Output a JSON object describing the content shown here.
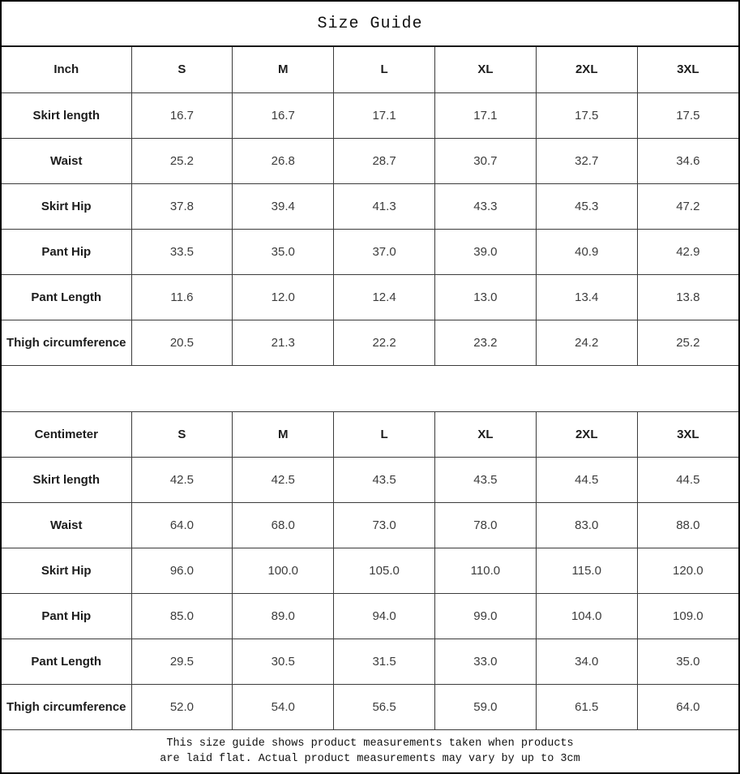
{
  "title": "Size Guide",
  "tables": [
    {
      "unit_header": "Inch",
      "sizes": [
        "S",
        "M",
        "L",
        "XL",
        "2XL",
        "3XL"
      ],
      "rows": [
        {
          "label": "Skirt length",
          "values": [
            "16.7",
            "16.7",
            "17.1",
            "17.1",
            "17.5",
            "17.5"
          ]
        },
        {
          "label": "Waist",
          "values": [
            "25.2",
            "26.8",
            "28.7",
            "30.7",
            "32.7",
            "34.6"
          ]
        },
        {
          "label": "Skirt Hip",
          "values": [
            "37.8",
            "39.4",
            "41.3",
            "43.3",
            "45.3",
            "47.2"
          ]
        },
        {
          "label": "Pant Hip",
          "values": [
            "33.5",
            "35.0",
            "37.0",
            "39.0",
            "40.9",
            "42.9"
          ]
        },
        {
          "label": "Pant Length",
          "values": [
            "11.6",
            "12.0",
            "12.4",
            "13.0",
            "13.4",
            "13.8"
          ]
        },
        {
          "label": "Thigh circumference",
          "values": [
            "20.5",
            "21.3",
            "22.2",
            "23.2",
            "24.2",
            "25.2"
          ]
        }
      ]
    },
    {
      "unit_header": "Centimeter",
      "sizes": [
        "S",
        "M",
        "L",
        "XL",
        "2XL",
        "3XL"
      ],
      "rows": [
        {
          "label": "Skirt length",
          "values": [
            "42.5",
            "42.5",
            "43.5",
            "43.5",
            "44.5",
            "44.5"
          ]
        },
        {
          "label": "Waist",
          "values": [
            "64.0",
            "68.0",
            "73.0",
            "78.0",
            "83.0",
            "88.0"
          ]
        },
        {
          "label": "Skirt Hip",
          "values": [
            "96.0",
            "100.0",
            "105.0",
            "110.0",
            "115.0",
            "120.0"
          ]
        },
        {
          "label": "Pant Hip",
          "values": [
            "85.0",
            "89.0",
            "94.0",
            "99.0",
            "104.0",
            "109.0"
          ]
        },
        {
          "label": "Pant Length",
          "values": [
            "29.5",
            "30.5",
            "31.5",
            "33.0",
            "34.0",
            "35.0"
          ]
        },
        {
          "label": "Thigh circumference",
          "values": [
            "52.0",
            "54.0",
            "56.5",
            "59.0",
            "61.5",
            "64.0"
          ]
        }
      ]
    }
  ],
  "footer": {
    "line1": "This size guide shows product measurements taken when products",
    "line2": "are laid flat. Actual product measurements may vary by up to 3cm"
  },
  "colors": {
    "outer_border": "#000000",
    "grid_line": "#3b3b3b",
    "heading_text": "#1c1c1c",
    "value_text": "#3c3c3c"
  }
}
